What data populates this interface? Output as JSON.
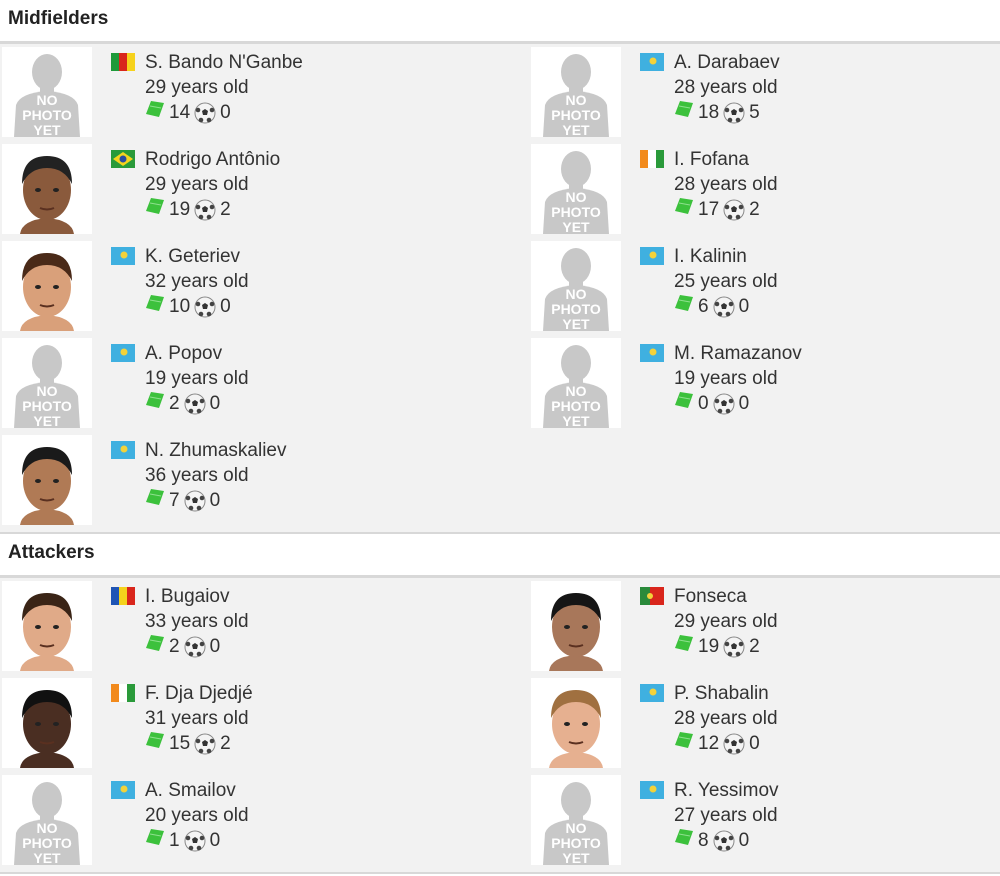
{
  "colors": {
    "header_border": "#d8d8d8",
    "body_bg": "#f2f2f2",
    "text": "#333333",
    "card_green": "#3cc13c"
  },
  "no_photo_text": [
    "NO",
    "PHOTO",
    "YET"
  ],
  "sections": [
    {
      "title": "Midfielders",
      "players": [
        {
          "name": "S. Bando N'Ganbe",
          "age": "29 years old",
          "apps": "14",
          "goals": "0",
          "flag": "cameroon",
          "photo": "no-photo"
        },
        {
          "name": "A. Darabaev",
          "age": "28 years old",
          "apps": "18",
          "goals": "5",
          "flag": "kazakhstan",
          "photo": "no-photo"
        },
        {
          "name": "Rodrigo Antônio",
          "age": "29 years old",
          "apps": "19",
          "goals": "2",
          "flag": "brazil",
          "photo": "photo",
          "skin": "#8a5a3c",
          "hair": "#222"
        },
        {
          "name": "I. Fofana",
          "age": "28 years old",
          "apps": "17",
          "goals": "2",
          "flag": "ivory-coast",
          "photo": "no-photo"
        },
        {
          "name": "K. Geteriev",
          "age": "32 years old",
          "apps": "10",
          "goals": "0",
          "flag": "kazakhstan",
          "photo": "photo",
          "skin": "#d9a07a",
          "hair": "#4a2a18"
        },
        {
          "name": "I. Kalinin",
          "age": "25 years old",
          "apps": "6",
          "goals": "0",
          "flag": "kazakhstan",
          "photo": "no-photo"
        },
        {
          "name": "A. Popov",
          "age": "19 years old",
          "apps": "2",
          "goals": "0",
          "flag": "kazakhstan",
          "photo": "no-photo"
        },
        {
          "name": "M. Ramazanov",
          "age": "19 years old",
          "apps": "0",
          "goals": "0",
          "flag": "kazakhstan",
          "photo": "no-photo"
        },
        {
          "name": "N. Zhumaskaliev",
          "age": "36 years old",
          "apps": "7",
          "goals": "0",
          "flag": "kazakhstan",
          "photo": "photo",
          "skin": "#b07a55",
          "hair": "#1a1a1a"
        }
      ]
    },
    {
      "title": "Attackers",
      "players": [
        {
          "name": "I. Bugaiov",
          "age": "33 years old",
          "apps": "2",
          "goals": "0",
          "flag": "moldova",
          "photo": "photo",
          "skin": "#e0aa88",
          "hair": "#3a2416"
        },
        {
          "name": "Fonseca",
          "age": "29 years old",
          "apps": "19",
          "goals": "2",
          "flag": "portugal",
          "photo": "photo",
          "skin": "#a8775a",
          "hair": "#151515"
        },
        {
          "name": "F. Dja Djedjé",
          "age": "31 years old",
          "apps": "15",
          "goals": "2",
          "flag": "ivory-coast",
          "photo": "photo",
          "skin": "#4a2e22",
          "hair": "#111"
        },
        {
          "name": "P. Shabalin",
          "age": "28 years old",
          "apps": "12",
          "goals": "0",
          "flag": "kazakhstan",
          "photo": "photo",
          "skin": "#e6b090",
          "hair": "#a07040"
        },
        {
          "name": "A. Smailov",
          "age": "20 years old",
          "apps": "1",
          "goals": "0",
          "flag": "kazakhstan",
          "photo": "no-photo"
        },
        {
          "name": "R. Yessimov",
          "age": "27 years old",
          "apps": "8",
          "goals": "0",
          "flag": "kazakhstan",
          "photo": "no-photo"
        }
      ]
    }
  ]
}
